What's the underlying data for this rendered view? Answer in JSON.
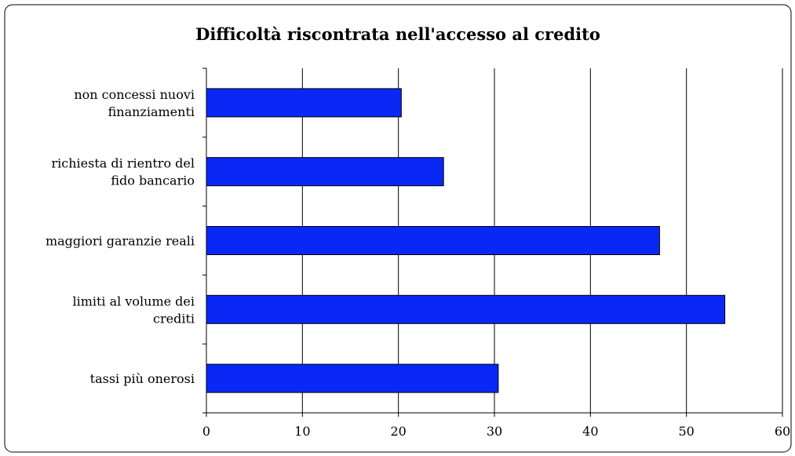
{
  "chart_data": {
    "type": "bar",
    "orientation": "horizontal",
    "title": "Difficoltà riscontrata nell'accesso al credito",
    "categories": [
      [
        "non concessi nuovi",
        "finanziamenti"
      ],
      [
        "richiesta di rientro del",
        "fido bancario"
      ],
      [
        "maggiori garanzie reali"
      ],
      [
        "limiti al volume dei",
        "crediti"
      ],
      [
        "tassi più onerosi"
      ]
    ],
    "values": [
      20.3,
      24.7,
      47.2,
      54.0,
      30.4
    ],
    "xlim": [
      0,
      60
    ],
    "xticks": [
      "0",
      "10",
      "20",
      "30",
      "40",
      "50",
      "60"
    ],
    "grid": true,
    "legend": "none",
    "bar_color": "#0a28f5",
    "frame_color": "#000000"
  }
}
